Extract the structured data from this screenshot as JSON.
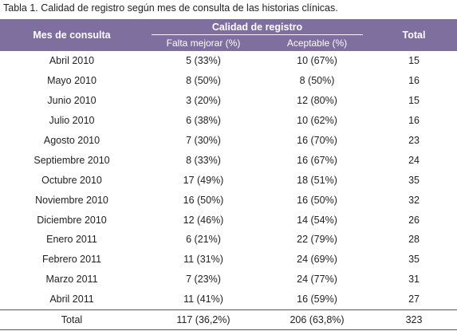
{
  "caption": "Tabla 1. Calidad de registro según mes de consulta de las historias clínicas.",
  "table": {
    "header": {
      "month": "Mes de consulta",
      "group": "Calidad de registro",
      "total": "Total",
      "sub": [
        "Falta mejorar (%)",
        "Aceptable (%)"
      ]
    },
    "rows": [
      [
        "Abril 2010",
        "5 (33%)",
        "10 (67%)",
        "15"
      ],
      [
        "Mayo 2010",
        "8 (50%)",
        "8 (50%)",
        "16"
      ],
      [
        "Junio 2010",
        "3 (20%)",
        "12 (80%)",
        "15"
      ],
      [
        "Julio 2010",
        "6 (38%)",
        "10 (62%)",
        "16"
      ],
      [
        "Agosto 2010",
        "7 (30%)",
        "16 (70%)",
        "23"
      ],
      [
        "Septiembre 2010",
        "8 (33%)",
        "16 (67%)",
        "24"
      ],
      [
        "Octubre 2010",
        "17 (49%)",
        "18 (51%)",
        "35"
      ],
      [
        "Noviembre 2010",
        "16 (50%)",
        "16 (50%)",
        "32"
      ],
      [
        "Diciembre 2010",
        "12 (46%)",
        "14 (54%)",
        "26"
      ],
      [
        "Enero 2011",
        "6 (21%)",
        "22 (79%)",
        "28"
      ],
      [
        "Febrero 2011",
        "11 (31%)",
        "24 (69%)",
        "35"
      ],
      [
        "Marzo 2011",
        "7 (23%)",
        "24 (77%)",
        "31"
      ],
      [
        "Abril 2011",
        "11 (41%)",
        "16 (59%)",
        "27"
      ]
    ],
    "total": [
      "Total",
      "117 (36,2%)",
      "206 (63,8%)",
      "323"
    ]
  }
}
